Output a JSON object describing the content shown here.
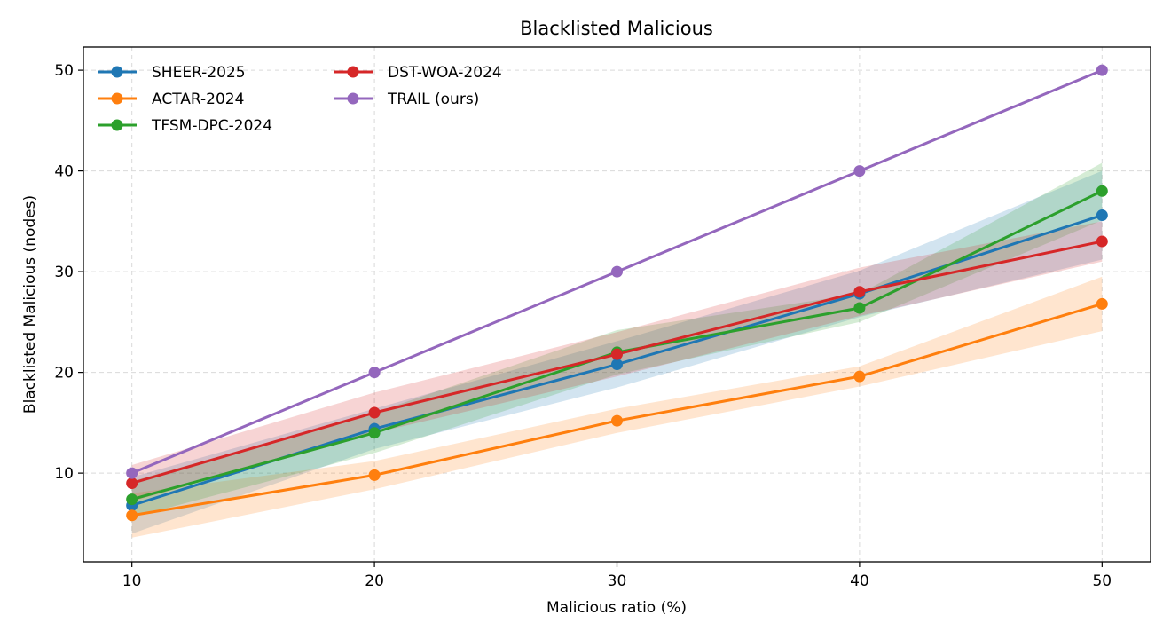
{
  "chart_data": {
    "type": "line",
    "title": "Blacklisted Malicious",
    "xlabel": "Malicious ratio (%)",
    "ylabel": "Blacklisted Malicious (nodes)",
    "x": [
      10,
      20,
      30,
      40,
      50
    ],
    "xlim": [
      8,
      52
    ],
    "ylim": [
      1.2,
      52.3
    ],
    "xticks": [
      10,
      20,
      30,
      40,
      50
    ],
    "yticks": [
      10,
      20,
      30,
      40,
      50
    ],
    "grid": true,
    "legend_position": "top-left",
    "series": [
      {
        "name": "SHEER-2025",
        "color": "#1f77b4",
        "values": [
          6.8,
          14.4,
          20.8,
          27.8,
          35.6
        ],
        "band_lower": [
          4.0,
          12.4,
          18.5,
          25.5,
          31.2
        ],
        "band_upper": [
          9.6,
          16.4,
          23.1,
          30.1,
          40.0
        ]
      },
      {
        "name": "ACTAR-2024",
        "color": "#ff7f0e",
        "values": [
          5.8,
          9.8,
          15.2,
          19.6,
          26.8
        ],
        "band_lower": [
          3.6,
          8.4,
          14.0,
          18.6,
          24.1
        ],
        "band_upper": [
          8.0,
          11.2,
          16.4,
          20.6,
          29.5
        ]
      },
      {
        "name": "TFSM-DPC-2024",
        "color": "#2ca02c",
        "values": [
          7.4,
          14.0,
          22.0,
          26.4,
          38.0
        ],
        "band_lower": [
          5.6,
          12.0,
          19.8,
          25.0,
          35.1
        ],
        "band_upper": [
          9.2,
          16.0,
          24.2,
          27.8,
          40.8
        ]
      },
      {
        "name": "DST-WOA-2024",
        "color": "#d62728",
        "values": [
          9.0,
          16.0,
          21.8,
          28.0,
          33.0
        ],
        "band_lower": [
          7.2,
          14.0,
          19.6,
          25.6,
          31.0
        ],
        "band_upper": [
          10.8,
          18.0,
          24.0,
          30.4,
          35.0
        ]
      },
      {
        "name": "TRAIL (ours)",
        "color": "#9467bd",
        "values": [
          10.0,
          20.0,
          30.0,
          40.0,
          50.0
        ]
      }
    ]
  }
}
